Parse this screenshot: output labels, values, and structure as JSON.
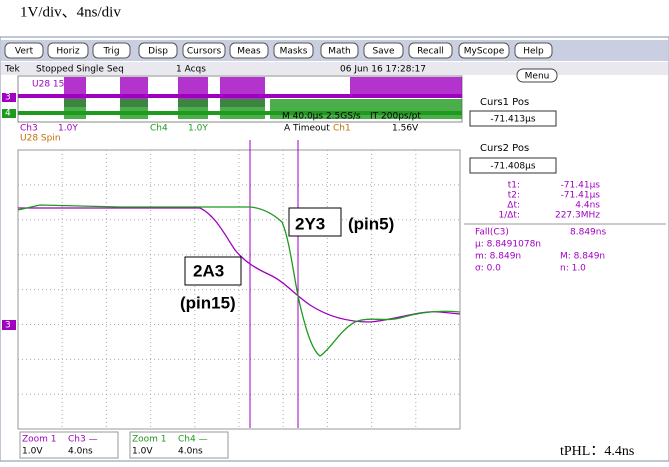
{
  "caption": "1V/div、4ns/div",
  "menu": [
    "Vert",
    "Horiz",
    "Trig",
    "Disp",
    "Cursors",
    "Meas",
    "Masks",
    "Math",
    "Save",
    "Recall",
    "MyScope",
    "Help"
  ],
  "status": {
    "brand": "Tek",
    "state": "Stopped  Single Seq",
    "acqs": "1 Acqs",
    "timestamp": "06 Jun 16 17:28:17"
  },
  "overview": {
    "label_top": "U28 15",
    "label_bottom": "U28 Spin",
    "marker_ch3": "3",
    "marker_ch4": "4",
    "ch3": "Ch3",
    "ch3_scale": "1.0Y",
    "ch4": "Ch4",
    "ch4_scale": "1.0Y",
    "timebase": "M 40.0µs 2.5GS/s",
    "resolution": "IT 200ps/pt",
    "trigger": "A  Timeout",
    "trigger_source": "Ch1",
    "trigger_level": "1.56V"
  },
  "main": {
    "marker": "3",
    "output_label": "2Y3",
    "output_pin": "(pin5)",
    "input_label": "2A3",
    "input_pin": "(pin15)"
  },
  "zoom": [
    {
      "title": "Zoom 1",
      "channel": "Ch3 —",
      "scale": "1.0V",
      "time": "4.0ns"
    },
    {
      "title": "Zoom 1",
      "channel": "Ch4 —",
      "scale": "1.0V",
      "time": "4.0ns"
    }
  ],
  "side": {
    "menu": "Menu",
    "curs1_label": "Curs1 Pos",
    "curs1_value": "-71.413µs",
    "curs2_label": "Curs2 Pos",
    "curs2_value": "-71.408µs",
    "readouts": [
      [
        "t1:",
        "-71.41µs"
      ],
      [
        "t2:",
        "-71.41µs"
      ],
      [
        "Δt:",
        "4.4ns"
      ],
      [
        "1/Δt:",
        "227.3MHz"
      ]
    ],
    "measure_title": "Fall(C3)",
    "measure_value": "8.849ns",
    "mean": "µ: 8.8491078n",
    "min": "m: 8.849n",
    "max": "M: 8.849n",
    "sigma": "σ: 0.0",
    "count": "n: 1.0"
  },
  "footer": "tPHL：4.4ns"
}
